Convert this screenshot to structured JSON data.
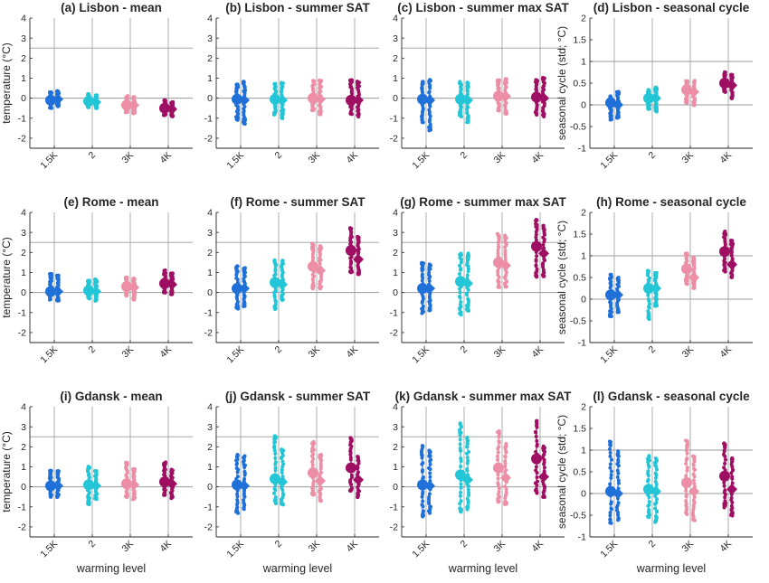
{
  "colors": {
    "1.5K": "#1f70d8",
    "2": "#22c6d6",
    "3K": "#ec8fa6",
    "4K": "#9e0f63",
    "grid": "#9a9a9a",
    "axis": "#262626"
  },
  "xlabel": "warming level",
  "chart_data": [
    {
      "type": "scatter",
      "id": "a",
      "title": "(a) Lisbon - mean",
      "ylabel": "temperature (°C)",
      "ylim": [
        -2.5,
        4
      ],
      "yticks": [
        -2,
        -1,
        0,
        1,
        2,
        3,
        4
      ],
      "hlines": [
        0,
        2.5
      ],
      "categories": [
        "1.5K",
        "2",
        "3K",
        "4K"
      ],
      "series": [
        {
          "level": "1.5K",
          "mean_a": -0.1,
          "mean_b": -0.05,
          "min_a": -0.5,
          "max_a": 0.3,
          "min_b": -0.4,
          "max_b": 0.35
        },
        {
          "level": "2",
          "mean_a": -0.15,
          "mean_b": -0.2,
          "min_a": -0.45,
          "max_a": 0.2,
          "min_b": -0.5,
          "max_b": 0.15
        },
        {
          "level": "3K",
          "mean_a": -0.35,
          "mean_b": -0.35,
          "min_a": -0.7,
          "max_a": 0.1,
          "min_b": -0.75,
          "max_b": 0.05
        },
        {
          "level": "4K",
          "mean_a": -0.5,
          "mean_b": -0.55,
          "min_a": -0.85,
          "max_a": -0.1,
          "min_b": -0.9,
          "max_b": -0.2
        }
      ]
    },
    {
      "type": "scatter",
      "id": "b",
      "title": "(b) Lisbon - summer SAT",
      "ylabel": "",
      "ylim": [
        -2.5,
        4
      ],
      "yticks": [
        -2,
        -1,
        0,
        1,
        2,
        3,
        4
      ],
      "hlines": [
        0,
        2.5
      ],
      "categories": [
        "1.5K",
        "2",
        "3K",
        "4K"
      ],
      "series": [
        {
          "level": "1.5K",
          "mean_a": -0.05,
          "mean_b": -0.1,
          "min_a": -1.1,
          "max_a": 0.7,
          "min_b": -1.3,
          "max_b": 0.8
        },
        {
          "level": "2",
          "mean_a": -0.05,
          "mean_b": -0.1,
          "min_a": -0.8,
          "max_a": 0.7,
          "min_b": -1.0,
          "max_b": 0.75
        },
        {
          "level": "3K",
          "mean_a": 0.0,
          "mean_b": -0.05,
          "min_a": -0.6,
          "max_a": 0.85,
          "min_b": -0.8,
          "max_b": 0.9
        },
        {
          "level": "4K",
          "mean_a": -0.1,
          "mean_b": -0.1,
          "min_a": -0.8,
          "max_a": 0.9,
          "min_b": -0.9,
          "max_b": 0.85
        }
      ]
    },
    {
      "type": "scatter",
      "id": "c",
      "title": "(c) Lisbon - summer max SAT",
      "ylabel": "",
      "ylim": [
        -2.5,
        4
      ],
      "yticks": [
        -2,
        -1,
        0,
        1,
        2,
        3,
        4
      ],
      "hlines": [
        0,
        2.5
      ],
      "categories": [
        "1.5K",
        "2",
        "3K",
        "4K"
      ],
      "series": [
        {
          "level": "1.5K",
          "mean_a": -0.05,
          "mean_b": -0.1,
          "min_a": -1.2,
          "max_a": 0.8,
          "min_b": -1.6,
          "max_b": 0.9
        },
        {
          "level": "2",
          "mean_a": -0.05,
          "mean_b": -0.1,
          "min_a": -0.9,
          "max_a": 0.8,
          "min_b": -1.2,
          "max_b": 0.75
        },
        {
          "level": "3K",
          "mean_a": 0.1,
          "mean_b": 0.1,
          "min_a": -0.6,
          "max_a": 0.9,
          "min_b": -0.8,
          "max_b": 0.95
        },
        {
          "level": "4K",
          "mean_a": 0.05,
          "mean_b": 0.0,
          "min_a": -0.8,
          "max_a": 0.9,
          "min_b": -0.9,
          "max_b": 1.0
        }
      ]
    },
    {
      "type": "scatter",
      "id": "d",
      "title": "(d) Lisbon - seasonal cycle",
      "ylabel": "seasonal cycle (std; °C)",
      "ylim": [
        -1,
        2
      ],
      "yticks": [
        -1,
        -0.5,
        0,
        0.5,
        1,
        1.5,
        2
      ],
      "hlines": [
        0,
        1
      ],
      "categories": [
        "1.5K",
        "2",
        "3K",
        "4K"
      ],
      "series": [
        {
          "level": "1.5K",
          "mean_a": 0.05,
          "mean_b": 0.0,
          "min_a": -0.35,
          "max_a": 0.2,
          "min_b": -0.3,
          "max_b": 0.3
        },
        {
          "level": "2",
          "mean_a": 0.15,
          "mean_b": 0.15,
          "min_a": -0.1,
          "max_a": 0.35,
          "min_b": -0.15,
          "max_b": 0.4
        },
        {
          "level": "3K",
          "mean_a": 0.35,
          "mean_b": 0.3,
          "min_a": 0.05,
          "max_a": 0.55,
          "min_b": 0.0,
          "max_b": 0.55
        },
        {
          "level": "4K",
          "mean_a": 0.5,
          "mean_b": 0.45,
          "min_a": 0.3,
          "max_a": 0.75,
          "min_b": 0.15,
          "max_b": 0.7
        }
      ]
    },
    {
      "type": "scatter",
      "id": "e",
      "title": "(e) Rome - mean",
      "ylabel": "temperature (°C)",
      "ylim": [
        -2.5,
        4
      ],
      "yticks": [
        -2,
        -1,
        0,
        1,
        2,
        3,
        4
      ],
      "hlines": [
        0,
        2.5
      ],
      "categories": [
        "1.5K",
        "2",
        "3K",
        "4K"
      ],
      "series": [
        {
          "level": "1.5K",
          "mean_a": 0.05,
          "mean_b": 0.05,
          "min_a": -0.35,
          "max_a": 0.95,
          "min_b": -0.4,
          "max_b": 0.85
        },
        {
          "level": "2",
          "mean_a": 0.1,
          "mean_b": 0.05,
          "min_a": -0.3,
          "max_a": 0.6,
          "min_b": -0.4,
          "max_b": 0.65
        },
        {
          "level": "3K",
          "mean_a": 0.3,
          "mean_b": 0.25,
          "min_a": -0.15,
          "max_a": 0.75,
          "min_b": -0.35,
          "max_b": 0.7
        },
        {
          "level": "4K",
          "mean_a": 0.45,
          "mean_b": 0.4,
          "min_a": 0.0,
          "max_a": 1.1,
          "min_b": -0.1,
          "max_b": 0.95
        }
      ]
    },
    {
      "type": "scatter",
      "id": "f",
      "title": "(f) Rome - summer SAT",
      "ylabel": "",
      "ylim": [
        -2.5,
        4
      ],
      "yticks": [
        -2,
        -1,
        0,
        1,
        2,
        3,
        4
      ],
      "hlines": [
        0,
        2.5
      ],
      "categories": [
        "1.5K",
        "2",
        "3K",
        "4K"
      ],
      "series": [
        {
          "level": "1.5K",
          "mean_a": 0.2,
          "mean_b": 0.2,
          "min_a": -0.8,
          "max_a": 1.3,
          "min_b": -0.7,
          "max_b": 1.2
        },
        {
          "level": "2",
          "mean_a": 0.5,
          "mean_b": 0.4,
          "min_a": -0.8,
          "max_a": 1.6,
          "min_b": -0.4,
          "max_b": 1.6
        },
        {
          "level": "3K",
          "mean_a": 1.3,
          "mean_b": 1.1,
          "min_a": 0.2,
          "max_a": 2.4,
          "min_b": 0.2,
          "max_b": 2.3
        },
        {
          "level": "4K",
          "mean_a": 2.1,
          "mean_b": 1.65,
          "min_a": 1.0,
          "max_a": 3.2,
          "min_b": 0.9,
          "max_b": 2.8
        }
      ]
    },
    {
      "type": "scatter",
      "id": "g",
      "title": "(g) Rome - summer max SAT",
      "ylabel": "",
      "ylim": [
        -2.5,
        4
      ],
      "yticks": [
        -2,
        -1,
        0,
        1,
        2,
        3,
        4
      ],
      "hlines": [
        0,
        2.5
      ],
      "categories": [
        "1.5K",
        "2",
        "3K",
        "4K"
      ],
      "series": [
        {
          "level": "1.5K",
          "mean_a": 0.2,
          "mean_b": 0.2,
          "min_a": -1.0,
          "max_a": 1.5,
          "min_b": -0.9,
          "max_b": 1.4
        },
        {
          "level": "2",
          "mean_a": 0.55,
          "mean_b": 0.45,
          "min_a": -1.1,
          "max_a": 1.9,
          "min_b": -0.9,
          "max_b": 1.9
        },
        {
          "level": "3K",
          "mean_a": 1.5,
          "mean_b": 1.35,
          "min_a": 0.3,
          "max_a": 2.9,
          "min_b": 0.3,
          "max_b": 2.8
        },
        {
          "level": "4K",
          "mean_a": 2.3,
          "mean_b": 1.95,
          "min_a": 0.8,
          "max_a": 3.6,
          "min_b": 0.8,
          "max_b": 3.3
        }
      ]
    },
    {
      "type": "scatter",
      "id": "h",
      "title": "(h) Rome - seasonal cycle",
      "ylabel": "seasonal cycle (std; °C)",
      "ylim": [
        -1,
        2
      ],
      "yticks": [
        -1,
        -0.5,
        0,
        0.5,
        1,
        1.5,
        2
      ],
      "hlines": [
        0,
        1
      ],
      "categories": [
        "1.5K",
        "2",
        "3K",
        "4K"
      ],
      "series": [
        {
          "level": "1.5K",
          "mean_a": 0.1,
          "mean_b": 0.1,
          "min_a": -0.4,
          "max_a": 0.55,
          "min_b": -0.3,
          "max_b": 0.5
        },
        {
          "level": "2",
          "mean_a": 0.25,
          "mean_b": 0.25,
          "min_a": -0.45,
          "max_a": 0.65,
          "min_b": -0.15,
          "max_b": 0.6
        },
        {
          "level": "3K",
          "mean_a": 0.7,
          "mean_b": 0.5,
          "min_a": 0.35,
          "max_a": 1.05,
          "min_b": 0.25,
          "max_b": 0.95
        },
        {
          "level": "4K",
          "mean_a": 1.1,
          "mean_b": 0.8,
          "min_a": 0.65,
          "max_a": 1.55,
          "min_b": 0.5,
          "max_b": 1.35
        }
      ]
    },
    {
      "type": "scatter",
      "id": "i",
      "title": "(i) Gdansk - mean",
      "ylabel": "temperature (°C)",
      "ylim": [
        -2.5,
        4
      ],
      "yticks": [
        -2,
        -1,
        0,
        1,
        2,
        3,
        4
      ],
      "hlines": [
        0,
        2.5
      ],
      "categories": [
        "1.5K",
        "2",
        "3K",
        "4K"
      ],
      "series": [
        {
          "level": "1.5K",
          "mean_a": 0.05,
          "mean_b": 0.05,
          "min_a": -0.5,
          "max_a": 0.8,
          "min_b": -0.5,
          "max_b": 0.8
        },
        {
          "level": "2",
          "mean_a": 0.1,
          "mean_b": 0.05,
          "min_a": -0.85,
          "max_a": 1.0,
          "min_b": -0.6,
          "max_b": 0.8
        },
        {
          "level": "3K",
          "mean_a": 0.15,
          "mean_b": 0.1,
          "min_a": -0.5,
          "max_a": 1.2,
          "min_b": -0.6,
          "max_b": 0.9
        },
        {
          "level": "4K",
          "mean_a": 0.25,
          "mean_b": 0.15,
          "min_a": -0.4,
          "max_a": 1.2,
          "min_b": -0.55,
          "max_b": 0.85
        }
      ]
    },
    {
      "type": "scatter",
      "id": "j",
      "title": "(j) Gdansk - summer SAT",
      "ylabel": "",
      "ylim": [
        -2.5,
        4
      ],
      "yticks": [
        -2,
        -1,
        0,
        1,
        2,
        3,
        4
      ],
      "hlines": [
        0,
        2.5
      ],
      "categories": [
        "1.5K",
        "2",
        "3K",
        "4K"
      ],
      "series": [
        {
          "level": "1.5K",
          "mean_a": 0.1,
          "mean_b": 0.05,
          "min_a": -1.3,
          "max_a": 1.6,
          "min_b": -1.1,
          "max_b": 1.5
        },
        {
          "level": "2",
          "mean_a": 0.4,
          "mean_b": 0.25,
          "min_a": -0.8,
          "max_a": 2.5,
          "min_b": -0.9,
          "max_b": 1.9
        },
        {
          "level": "3K",
          "mean_a": 0.7,
          "mean_b": 0.3,
          "min_a": -0.4,
          "max_a": 2.2,
          "min_b": -0.7,
          "max_b": 1.6
        },
        {
          "level": "4K",
          "mean_a": 0.95,
          "mean_b": 0.35,
          "min_a": -0.2,
          "max_a": 2.4,
          "min_b": -0.5,
          "max_b": 1.5
        }
      ]
    },
    {
      "type": "scatter",
      "id": "k",
      "title": "(k) Gdansk - summer max SAT",
      "ylabel": "",
      "ylim": [
        -2.5,
        4
      ],
      "yticks": [
        -2,
        -1,
        0,
        1,
        2,
        3,
        4
      ],
      "hlines": [
        0,
        2.5
      ],
      "categories": [
        "1.5K",
        "2",
        "3K",
        "4K"
      ],
      "series": [
        {
          "level": "1.5K",
          "mean_a": 0.1,
          "mean_b": 0.05,
          "min_a": -1.5,
          "max_a": 2.0,
          "min_b": -1.3,
          "max_b": 1.8
        },
        {
          "level": "2",
          "mean_a": 0.6,
          "mean_b": 0.35,
          "min_a": -1.3,
          "max_a": 3.1,
          "min_b": -1.1,
          "max_b": 2.4
        },
        {
          "level": "3K",
          "mean_a": 0.95,
          "mean_b": 0.45,
          "min_a": -0.7,
          "max_a": 2.8,
          "min_b": -0.9,
          "max_b": 2.1
        },
        {
          "level": "4K",
          "mean_a": 1.4,
          "mean_b": 0.5,
          "min_a": -0.3,
          "max_a": 3.3,
          "min_b": -0.5,
          "max_b": 2.0
        }
      ]
    },
    {
      "type": "scatter",
      "id": "l",
      "title": "(l) Gdansk - seasonal cycle",
      "ylabel": "seasonal cycle (std; °C)",
      "ylim": [
        -1,
        2
      ],
      "yticks": [
        -1,
        -0.5,
        0,
        0.5,
        1,
        1.5,
        2
      ],
      "hlines": [
        0,
        1
      ],
      "categories": [
        "1.5K",
        "2",
        "3K",
        "4K"
      ],
      "series": [
        {
          "level": "1.5K",
          "mean_a": 0.05,
          "mean_b": 0.0,
          "min_a": -0.65,
          "max_a": 1.2,
          "min_b": -0.6,
          "max_b": 0.95
        },
        {
          "level": "2",
          "mean_a": 0.1,
          "mean_b": 0.05,
          "min_a": -0.55,
          "max_a": 0.85,
          "min_b": -0.65,
          "max_b": 0.8
        },
        {
          "level": "3K",
          "mean_a": 0.25,
          "mean_b": 0.05,
          "min_a": -0.45,
          "max_a": 1.2,
          "min_b": -0.6,
          "max_b": 0.85
        },
        {
          "level": "4K",
          "mean_a": 0.4,
          "mean_b": 0.1,
          "min_a": -0.3,
          "max_a": 1.15,
          "min_b": -0.5,
          "max_b": 0.8
        }
      ]
    }
  ]
}
